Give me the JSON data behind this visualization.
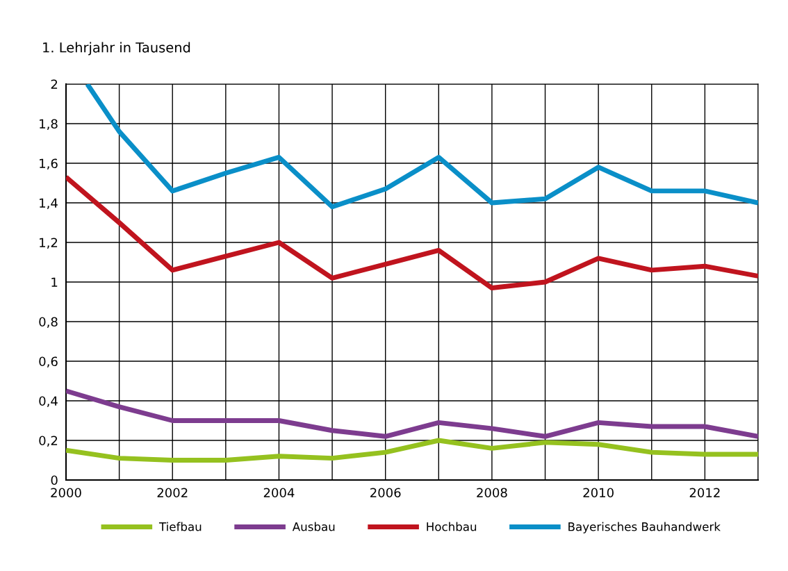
{
  "chart_data": {
    "type": "line",
    "ylabel": "1. Lehrjahr in Tausend",
    "x": [
      2000,
      2001,
      2002,
      2003,
      2004,
      2005,
      2006,
      2007,
      2008,
      2009,
      2010,
      2011,
      2012,
      2013
    ],
    "series": [
      {
        "name": "Tiefbau",
        "color": "#95c11f",
        "values": [
          0.15,
          0.11,
          0.1,
          0.1,
          0.12,
          0.11,
          0.14,
          0.2,
          0.16,
          0.19,
          0.18,
          0.14,
          0.13,
          0.13
        ]
      },
      {
        "name": "Ausbau",
        "color": "#7d3c8f",
        "values": [
          0.45,
          0.37,
          0.3,
          0.3,
          0.3,
          0.25,
          0.22,
          0.29,
          0.26,
          0.22,
          0.29,
          0.27,
          0.27,
          0.22
        ]
      },
      {
        "name": "Hochbau",
        "color": "#c0141e",
        "values": [
          1.53,
          1.3,
          1.06,
          1.13,
          1.2,
          1.02,
          1.09,
          1.16,
          0.97,
          1.0,
          1.12,
          1.06,
          1.08,
          1.03
        ]
      },
      {
        "name": "Bayerisches Bauhandwerk",
        "color": "#0a8fc8",
        "x": [
          2000.4,
          2001,
          2002,
          2003,
          2004,
          2005,
          2006,
          2007,
          2008,
          2009,
          2010,
          2011,
          2012,
          2013
        ],
        "values": [
          2.0,
          1.76,
          1.46,
          1.55,
          1.63,
          1.38,
          1.47,
          1.63,
          1.4,
          1.42,
          1.58,
          1.46,
          1.46,
          1.4
        ]
      }
    ],
    "xlim": [
      2000,
      2013
    ],
    "xticks": [
      2000,
      {
        "value": 2001,
        "label": null
      },
      2002,
      {
        "value": 2003,
        "label": null
      },
      2004,
      {
        "value": 2005,
        "label": null
      },
      2006,
      {
        "value": 2007,
        "label": null
      },
      2008,
      {
        "value": 2009,
        "label": null
      },
      2010,
      {
        "value": 2011,
        "label": null
      },
      2012,
      {
        "value": 2013,
        "label": null
      }
    ],
    "ylim": [
      0,
      2
    ],
    "yticks": [
      0,
      {
        "value": 0.2,
        "label": "0,2"
      },
      {
        "value": 0.4,
        "label": "0,4"
      },
      {
        "value": 0.6,
        "label": "0,6"
      },
      {
        "value": 0.8,
        "label": "0,8"
      },
      1,
      {
        "value": 1.2,
        "label": "1,2"
      },
      {
        "value": 1.4,
        "label": "1,4"
      },
      {
        "value": 1.6,
        "label": "1,6"
      },
      {
        "value": 1.8,
        "label": "1,8"
      },
      2
    ],
    "grid": true,
    "legend": "bottom",
    "marker": "none",
    "line_style": "solid"
  }
}
